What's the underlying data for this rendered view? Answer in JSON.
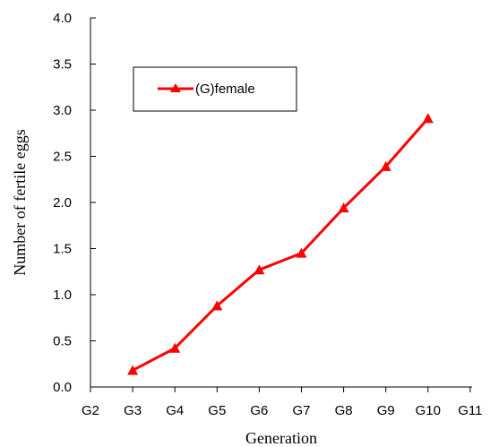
{
  "chart_data": {
    "type": "line",
    "categories": [
      "G2",
      "G3",
      "G4",
      "G5",
      "G6",
      "G7",
      "G8",
      "G9",
      "G10",
      "G11"
    ],
    "series": [
      {
        "name": "(G)female",
        "color": "#ff0000",
        "marker": "triangle",
        "values": [
          null,
          0.18,
          0.42,
          0.88,
          1.27,
          1.45,
          1.94,
          2.39,
          2.91,
          null
        ]
      }
    ],
    "xlabel": "Generation",
    "ylabel": "Number of fertile eggs",
    "ylim": [
      0,
      4.0
    ],
    "yticks": [
      "0.0",
      "0.5",
      "1.0",
      "1.5",
      "2.0",
      "2.5",
      "3.0",
      "3.5",
      "4.0"
    ],
    "grid": false,
    "legend_position": "top-left"
  }
}
